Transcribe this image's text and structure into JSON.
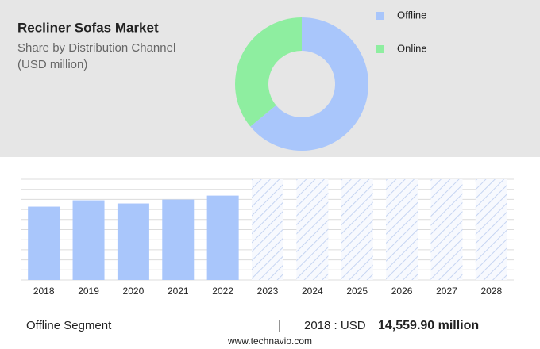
{
  "chart_data": [
    {
      "type": "pie",
      "title": "Recliner Sofas Market",
      "subtitle": [
        "Share by Distribution Channel",
        "(USD million)"
      ],
      "categories": [
        "Offline",
        "Online"
      ],
      "values": [
        64,
        36
      ],
      "colors": [
        "#a9c6fb",
        "#8eeea0"
      ],
      "hole": true
    },
    {
      "type": "bar",
      "categories": [
        "2018",
        "2019",
        "2020",
        "2021",
        "2022",
        "2023",
        "2024",
        "2025",
        "2026",
        "2027",
        "2028"
      ],
      "values": [
        14559.9,
        15815,
        15190,
        15970,
        16755,
        null,
        null,
        null,
        null,
        null,
        null
      ],
      "color": "#a9c6fb",
      "ylim": [
        0,
        20000
      ],
      "yticks": [
        0,
        2000,
        4000,
        6000,
        8000,
        10000,
        12000,
        14000,
        16000,
        18000,
        20000
      ],
      "grid": true
    }
  ],
  "footer": {
    "segment": "Offline Segment",
    "separator": "|",
    "year": "2018 : USD",
    "value": "14,559.90 million",
    "source": "www.technavio.com"
  }
}
